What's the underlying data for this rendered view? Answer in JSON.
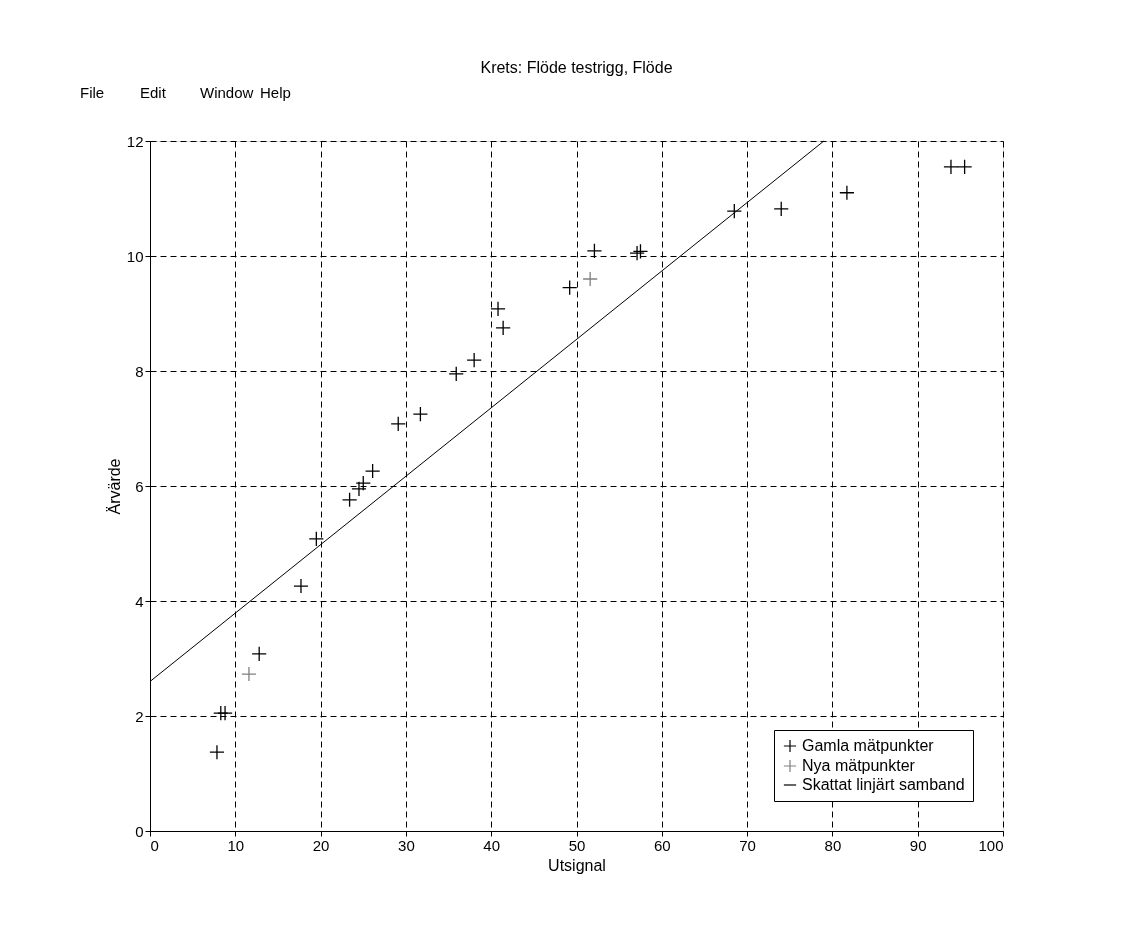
{
  "chart_data": {
    "type": "scatter",
    "title": "Krets: Flöde testrigg, Flöde",
    "xlabel": "Utsignal",
    "ylabel": "Ärvärde",
    "xlim": [
      0,
      100
    ],
    "xticks": [
      0,
      10,
      20,
      30,
      40,
      50,
      60,
      70,
      80,
      90,
      100
    ],
    "ylim": [
      0,
      12
    ],
    "yticks": [
      0,
      2,
      4,
      6,
      8,
      10,
      12
    ],
    "grid": true,
    "legend": "bottom right",
    "marker": "cross",
    "annotations": [
      "File",
      "Edit",
      "Window",
      "Help"
    ],
    "series": [
      {
        "name": "Gamla mätpunkter",
        "color": "#000000",
        "x": [
          7.85,
          8.3,
          8.8,
          12.8,
          17.7,
          19.5,
          23.4,
          24.5,
          25.0,
          26.1,
          29.1,
          31.7,
          35.9,
          38.0,
          40.8,
          41.4,
          49.2,
          52.1,
          57.1,
          57.5,
          68.5,
          74.0,
          81.7,
          93.9,
          95.5
        ],
        "values": [
          1.37,
          2.05,
          2.05,
          3.08,
          4.26,
          5.08,
          5.76,
          5.95,
          6.05,
          6.26,
          7.08,
          7.25,
          7.95,
          8.19,
          9.08,
          8.75,
          9.45,
          10.09,
          10.05,
          10.08,
          10.78,
          10.82,
          11.1,
          11.55,
          11.55
        ]
      },
      {
        "name": "Nya mätpunkter",
        "color": "#808080",
        "x": [
          11.6,
          51.6
        ],
        "values": [
          2.73,
          9.6
        ]
      },
      {
        "name": "Skattat linjärt samband",
        "type": "line",
        "color": "#000000",
        "line_style": "solid",
        "marker": "none",
        "x": [
          0,
          79
        ],
        "values": [
          2.6,
          12
        ]
      }
    ]
  }
}
